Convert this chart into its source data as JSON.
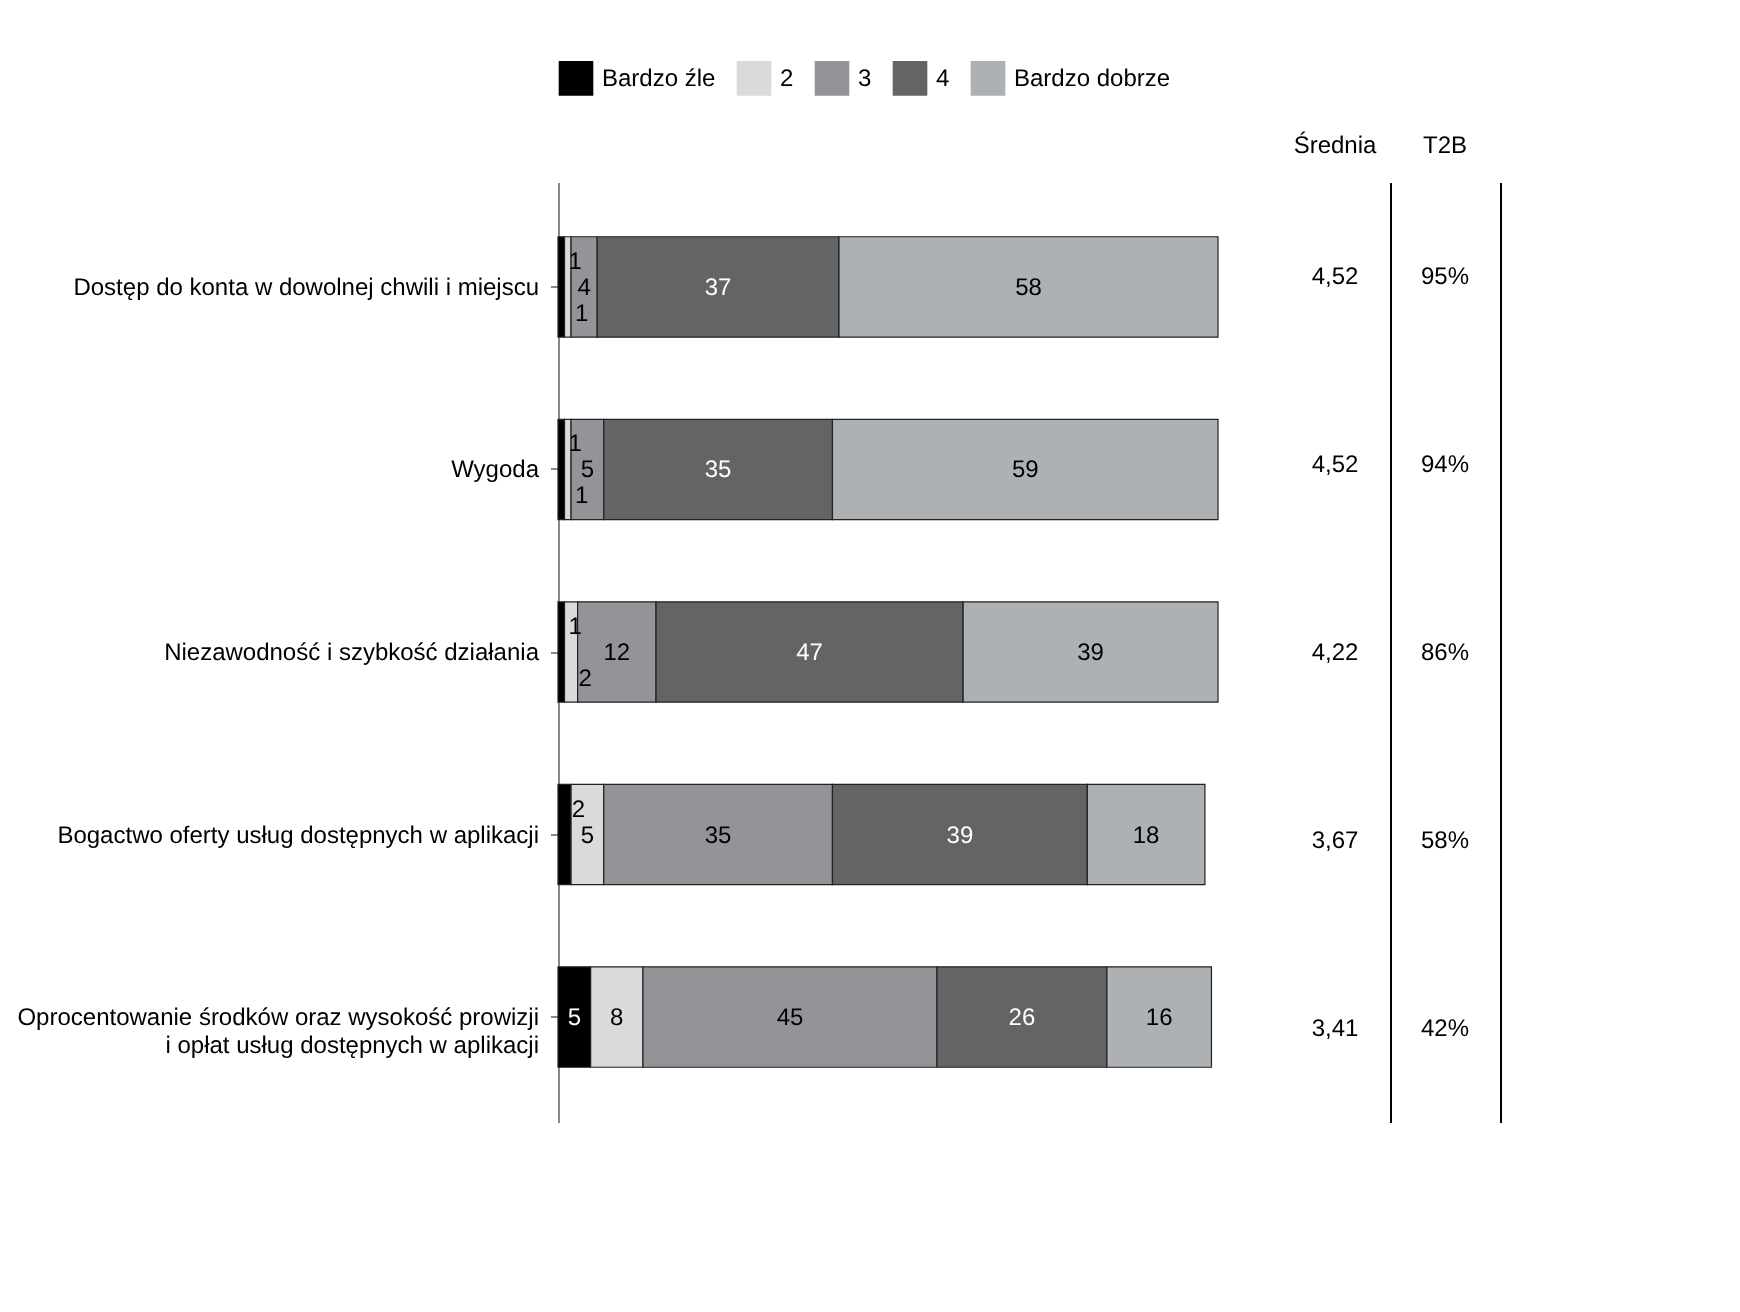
{
  "chart_data": {
    "type": "bar",
    "orientation": "horizontal",
    "stacked": true,
    "data_labels": true,
    "legend": "top",
    "categories": [
      "Dostęp do konta w dowolnej chwili i miejscu",
      "Wygoda",
      "Niezawodność i szybkość działania",
      "Bogactwo oferty usług dostępnych w aplikacji",
      "Oprocentowanie środków oraz wysokość prowizji\ni opłat usług dostępnych w aplikacji"
    ],
    "series": [
      {
        "name": "Bardzo źle",
        "color": "#000000",
        "values": [
          1,
          1,
          1,
          2,
          5
        ]
      },
      {
        "name": "2",
        "color": "#d9dadb",
        "values": [
          1,
          1,
          2,
          5,
          8
        ]
      },
      {
        "name": "3",
        "color": "#939497",
        "values": [
          4,
          5,
          12,
          35,
          45
        ]
      },
      {
        "name": "4",
        "color": "#636466",
        "values": [
          37,
          35,
          47,
          39,
          26
        ]
      },
      {
        "name": "Bardzo dobrze",
        "color": "#aeb1b4",
        "values": [
          58,
          59,
          39,
          18,
          16
        ]
      }
    ],
    "annotations": [
      "Średnia",
      "T2B",
      "4,52",
      "95%",
      "4,52",
      "94%",
      "4,22",
      "86%",
      "3,67",
      "58%",
      "3,41",
      "42%"
    ]
  }
}
